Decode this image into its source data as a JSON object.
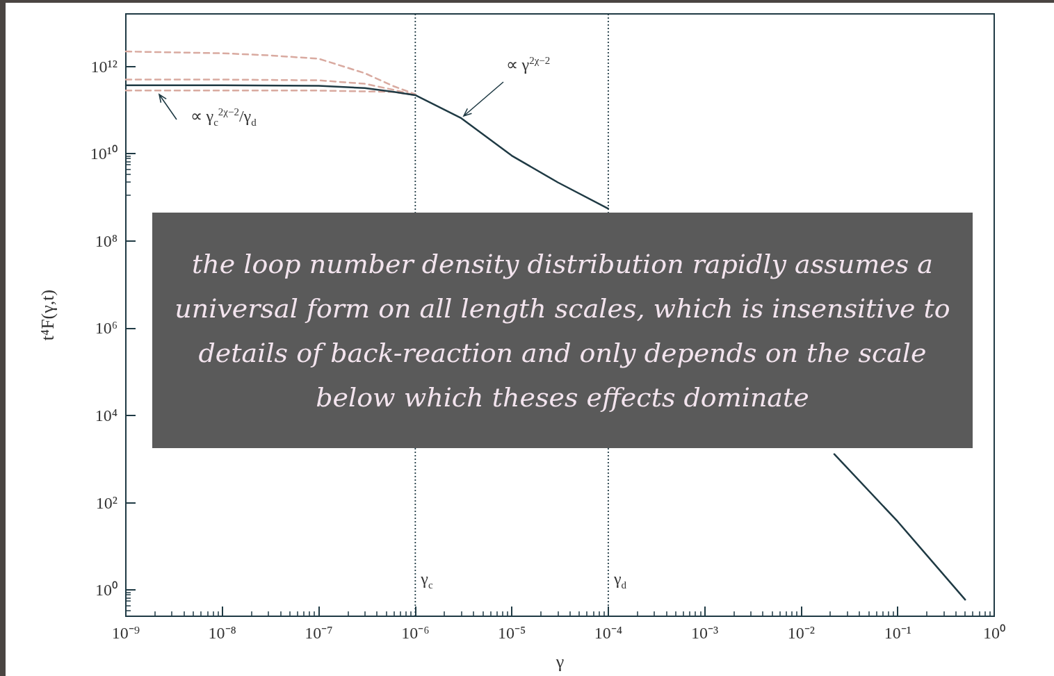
{
  "chart_data": {
    "type": "line",
    "xlabel": "γ",
    "ylabel": "t⁴F(γ,t)",
    "log": "xy",
    "grid": false,
    "marker": "none",
    "line_style": "solid",
    "xlim": [
      1e-09,
      1
    ],
    "ylim": [
      0.25,
      16000000000000.0
    ],
    "xticks": [
      {
        "value": 1e-09,
        "label": "10⁻⁹"
      },
      {
        "value": 1e-08,
        "label": "10⁻⁸"
      },
      {
        "value": 1e-07,
        "label": "10⁻⁷"
      },
      {
        "value": 1e-06,
        "label": "10⁻⁶"
      },
      {
        "value": 1e-05,
        "label": "10⁻⁵"
      },
      {
        "value": 0.0001,
        "label": "10⁻⁴"
      },
      {
        "value": 0.001,
        "label": "10⁻³"
      },
      {
        "value": 0.01,
        "label": "10⁻²"
      },
      {
        "value": 0.1,
        "label": "10⁻¹"
      },
      {
        "value": 1,
        "label": "10⁰"
      }
    ],
    "yticks": [
      {
        "value": 1,
        "label": "10⁰"
      },
      {
        "value": 100,
        "label": "10²"
      },
      {
        "value": 10000,
        "label": "10⁴"
      },
      {
        "value": 1000000.0,
        "label": "10⁶"
      },
      {
        "value": 100000000.0,
        "label": "10⁸"
      },
      {
        "value": 10000000000.0,
        "label": "10¹⁰"
      },
      {
        "value": 1000000000000.0,
        "label": "10¹²"
      }
    ],
    "series": [
      {
        "color": "#1f3a44",
        "x": [
          1e-09,
          1e-08,
          1e-07,
          3e-07,
          6e-07,
          1e-06,
          3e-06,
          1e-05,
          3e-05,
          0.0001,
          0.001,
          0.022,
          0.1,
          0.5
        ],
        "values": [
          370000000000.0,
          370000000000.0,
          360000000000.0,
          320000000000.0,
          260000000000.0,
          220000000000.0,
          65000000000.0,
          9000000000.0,
          2200000000.0,
          550000000.0,
          null,
          1300,
          37,
          0.6
        ]
      },
      {
        "color": "#d9aaa0",
        "line_style": "dashed",
        "x": [
          1e-09,
          1e-08,
          3e-08,
          1e-07,
          3e-07,
          6e-07,
          1e-06
        ],
        "values": [
          2200000000000.0,
          2000000000000.0,
          1800000000000.0,
          1500000000000.0,
          700000000000.0,
          350000000000.0,
          230000000000.0
        ]
      },
      {
        "color": "#d9aaa0",
        "line_style": "dashed",
        "x": [
          1e-09,
          1e-08,
          1e-07,
          3e-07,
          6e-07,
          1e-06
        ],
        "values": [
          500000000000.0,
          500000000000.0,
          480000000000.0,
          400000000000.0,
          290000000000.0,
          220000000000.0
        ]
      },
      {
        "color": "#d9aaa0",
        "line_style": "dashed",
        "x": [
          1e-09,
          1e-08,
          1e-07,
          6e-07,
          1e-06
        ],
        "values": [
          280000000000.0,
          280000000000.0,
          280000000000.0,
          260000000000.0,
          220000000000.0
        ]
      }
    ],
    "ref_lines": [
      {
        "axis": "x",
        "value": 1e-06,
        "label": "γ$_{c}$",
        "line_style": "dotted"
      },
      {
        "axis": "x",
        "value": 0.0001,
        "label": "γ$_{d}$",
        "line_style": "dotted"
      }
    ],
    "annotations": [
      {
        "text": "∝ γ$^{2χ−2}$",
        "x": 3e-06,
        "y": 65000000000.0
      },
      {
        "text": "∝ γ$_{c}$$^{2χ−2}$/γ$_{d}$",
        "x": 2.2e-09,
        "y": 280000000000.0
      },
      "the loop number density distribution rapidly assumes a universal form on all length scales, which is insensitive to details of back-reaction and only depends on the scale below which theses effects dominate"
    ]
  }
}
